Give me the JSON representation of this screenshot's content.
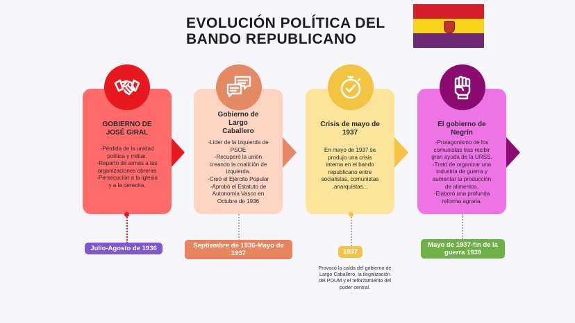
{
  "title": {
    "line1": "EVOLUCIÓN POLÍTICA DEL",
    "line2": "BANDO REPUBLICANO"
  },
  "flag": {
    "name": "Spanish Second Republic flag",
    "colors": [
      "#d5202b",
      "#f7d31a",
      "#6b2a72"
    ]
  },
  "colors": {
    "stage1": "#ff6b6b",
    "stage1_circle": "#e8191e",
    "stage2": "#fdd5c2",
    "stage2_circle": "#e58965",
    "stage3": "#fce49a",
    "stage3_circle": "#f3c441",
    "stage4": "#ee73e4",
    "stage4_circle": "#8c0b71",
    "pill1": "#7f55d0",
    "pill2": "#e8855f",
    "pill3": "#f0c34a",
    "pill4": "#6eaf46"
  },
  "stages": [
    {
      "icon": "handshake-icon",
      "title": "GOBIERNO DE\nJOSÉ GIRAL",
      "body": "-Pérdida de la unidad\npolítica y militar.\n-Reparto de armas a las\norganizaciones obreras\n-Persecución a la iglesia\ny a la derecha.",
      "period": "Julio-Agosto de 1936"
    },
    {
      "icon": "chat-bubbles-icon",
      "title": "Gobierno de\nLargo\nCaballero",
      "body": "-Líder de la izquierda de\nPSOE\n-Recuperó la unión\ncreando la coalición de\nizquierda.\n-Creó el Ejército Popular\n-Aprobó el Estatuto de\nAutonomía Vasco en\nOctubre de 1936",
      "period": "Septiembre de 1936-Mayo de\n1937"
    },
    {
      "icon": "stopwatch-icon",
      "title": "Crisis de mayo de\n1937",
      "body": "En mayo de 1937 se\nprodujo una crisis\ninterna en el bando\nrepublicano entre\nsocialistas, comunistas\n,anarquistas...",
      "period": "1937",
      "note": "Provocó la caída del gobierno de\nLargo Caballero, la ilegalización\ndel POUM y el reforzamiento del\npoder central."
    },
    {
      "icon": "raised-fist-icon",
      "title": "El gobierno de\nNegrín",
      "body": "-Protagonismo de los\ncomunistas  tras recibir\ngran ayuda de la URSS.\n-Trató  de organizar una\nindustria de guerra y\naumentar la producción\nde alimentos.\n-Elaboró una profunda\nreforma agraria.",
      "period": "Mayo de 1937-fin de la\nguerra 1939"
    }
  ]
}
